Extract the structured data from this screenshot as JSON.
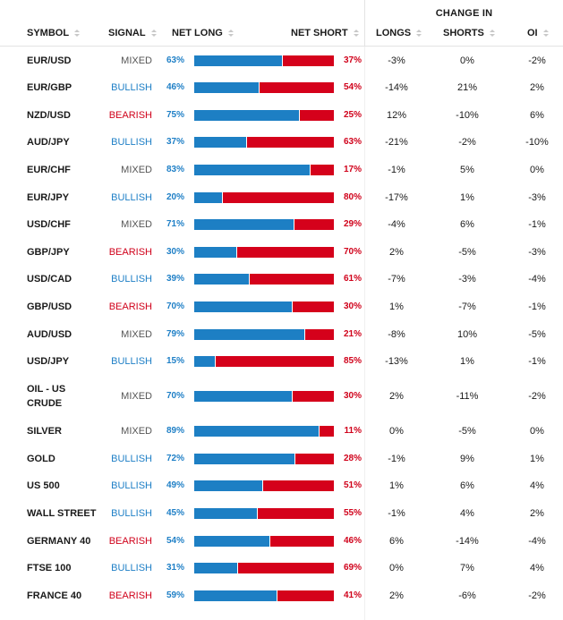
{
  "header": {
    "change_in": "CHANGE IN",
    "symbol": "SYMBOL",
    "signal": "SIGNAL",
    "net_long": "NET LONG",
    "net_short": "NET SHORT",
    "longs": "LONGS",
    "shorts": "SHORTS",
    "oi": "OI"
  },
  "colors": {
    "long": "#1d7fc4",
    "short": "#d5011b",
    "mixed": "#555555"
  },
  "rows": [
    {
      "symbol": [
        "EUR/USD"
      ],
      "signal": "MIXED",
      "net_long": 63,
      "net_long_label": "63%",
      "net_short_label": "37%",
      "longs": "-3%",
      "shorts": "0%",
      "oi": "-2%"
    },
    {
      "symbol": [
        "EUR/GBP"
      ],
      "signal": "BULLISH",
      "net_long": 46,
      "net_long_label": "46%",
      "net_short_label": "54%",
      "longs": "-14%",
      "shorts": "21%",
      "oi": "2%"
    },
    {
      "symbol": [
        "NZD/USD"
      ],
      "signal": "BEARISH",
      "net_long": 75,
      "net_long_label": "75%",
      "net_short_label": "25%",
      "longs": "12%",
      "shorts": "-10%",
      "oi": "6%"
    },
    {
      "symbol": [
        "AUD/JPY"
      ],
      "signal": "BULLISH",
      "net_long": 37,
      "net_long_label": "37%",
      "net_short_label": "63%",
      "longs": "-21%",
      "shorts": "-2%",
      "oi": "-10%"
    },
    {
      "symbol": [
        "EUR/CHF"
      ],
      "signal": "MIXED",
      "net_long": 83,
      "net_long_label": "83%",
      "net_short_label": "17%",
      "longs": "-1%",
      "shorts": "5%",
      "oi": "0%"
    },
    {
      "symbol": [
        "EUR/JPY"
      ],
      "signal": "BULLISH",
      "net_long": 20,
      "net_long_label": "20%",
      "net_short_label": "80%",
      "longs": "-17%",
      "shorts": "1%",
      "oi": "-3%"
    },
    {
      "symbol": [
        "USD/CHF"
      ],
      "signal": "MIXED",
      "net_long": 71,
      "net_long_label": "71%",
      "net_short_label": "29%",
      "longs": "-4%",
      "shorts": "6%",
      "oi": "-1%"
    },
    {
      "symbol": [
        "GBP/JPY"
      ],
      "signal": "BEARISH",
      "net_long": 30,
      "net_long_label": "30%",
      "net_short_label": "70%",
      "longs": "2%",
      "shorts": "-5%",
      "oi": "-3%"
    },
    {
      "symbol": [
        "USD/CAD"
      ],
      "signal": "BULLISH",
      "net_long": 39,
      "net_long_label": "39%",
      "net_short_label": "61%",
      "longs": "-7%",
      "shorts": "-3%",
      "oi": "-4%"
    },
    {
      "symbol": [
        "GBP/USD"
      ],
      "signal": "BEARISH",
      "net_long": 70,
      "net_long_label": "70%",
      "net_short_label": "30%",
      "longs": "1%",
      "shorts": "-7%",
      "oi": "-1%"
    },
    {
      "symbol": [
        "AUD/USD"
      ],
      "signal": "MIXED",
      "net_long": 79,
      "net_long_label": "79%",
      "net_short_label": "21%",
      "longs": "-8%",
      "shorts": "10%",
      "oi": "-5%"
    },
    {
      "symbol": [
        "USD/JPY"
      ],
      "signal": "BULLISH",
      "net_long": 15,
      "net_long_label": "15%",
      "net_short_label": "85%",
      "longs": "-13%",
      "shorts": "1%",
      "oi": "-1%"
    },
    {
      "symbol": [
        "OIL - US",
        "CRUDE"
      ],
      "signal": "MIXED",
      "net_long": 70,
      "net_long_label": "70%",
      "net_short_label": "30%",
      "longs": "2%",
      "shorts": "-11%",
      "oi": "-2%"
    },
    {
      "symbol": [
        "SILVER"
      ],
      "signal": "MIXED",
      "net_long": 89,
      "net_long_label": "89%",
      "net_short_label": "11%",
      "longs": "0%",
      "shorts": "-5%",
      "oi": "0%"
    },
    {
      "symbol": [
        "GOLD"
      ],
      "signal": "BULLISH",
      "net_long": 72,
      "net_long_label": "72%",
      "net_short_label": "28%",
      "longs": "-1%",
      "shorts": "9%",
      "oi": "1%"
    },
    {
      "symbol": [
        "US 500"
      ],
      "signal": "BULLISH",
      "net_long": 49,
      "net_long_label": "49%",
      "net_short_label": "51%",
      "longs": "1%",
      "shorts": "6%",
      "oi": "4%"
    },
    {
      "symbol": [
        "WALL STREET"
      ],
      "signal": "BULLISH",
      "net_long": 45,
      "net_long_label": "45%",
      "net_short_label": "55%",
      "longs": "-1%",
      "shorts": "4%",
      "oi": "2%"
    },
    {
      "symbol": [
        "GERMANY 40"
      ],
      "signal": "BEARISH",
      "net_long": 54,
      "net_long_label": "54%",
      "net_short_label": "46%",
      "longs": "6%",
      "shorts": "-14%",
      "oi": "-4%"
    },
    {
      "symbol": [
        "FTSE 100"
      ],
      "signal": "BULLISH",
      "net_long": 31,
      "net_long_label": "31%",
      "net_short_label": "69%",
      "longs": "0%",
      "shorts": "7%",
      "oi": "4%"
    },
    {
      "symbol": [
        "FRANCE 40"
      ],
      "signal": "BEARISH",
      "net_long": 59,
      "net_long_label": "59%",
      "net_short_label": "41%",
      "longs": "2%",
      "shorts": "-6%",
      "oi": "-2%"
    }
  ]
}
